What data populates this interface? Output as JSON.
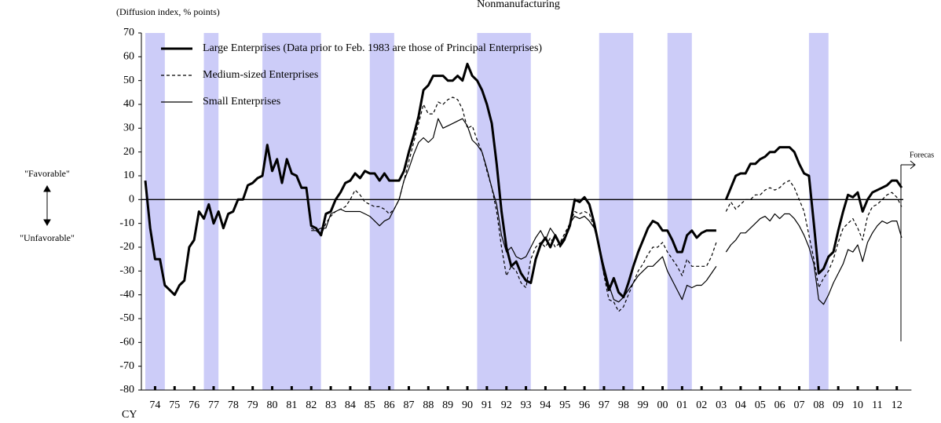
{
  "chart_data": {
    "type": "line",
    "title": "Nonmanufacturing",
    "y_axis_label": "(Diffusion index, % points)",
    "upper_note": "\"Favorable\"",
    "lower_note": "\"Unfavorable\"",
    "forecast_note": "Forecas",
    "x_axis_label": "CY",
    "xlim": [
      1974,
      2013.25
    ],
    "ylim": [
      -80,
      70
    ],
    "yticks": [
      -80,
      -70,
      -60,
      -50,
      -40,
      -30,
      -20,
      -10,
      0,
      10,
      20,
      30,
      40,
      50,
      60,
      70
    ],
    "xticks": [
      {
        "value": 1974.5,
        "label": "74"
      },
      {
        "value": 1975.5,
        "label": "75"
      },
      {
        "value": 1976.5,
        "label": "76"
      },
      {
        "value": 1977.5,
        "label": "77"
      },
      {
        "value": 1978.5,
        "label": "78"
      },
      {
        "value": 1979.5,
        "label": "79"
      },
      {
        "value": 1980.5,
        "label": "80"
      },
      {
        "value": 1981.5,
        "label": "81"
      },
      {
        "value": 1982.5,
        "label": "82"
      },
      {
        "value": 1983.5,
        "label": "83"
      },
      {
        "value": 1984.5,
        "label": "84"
      },
      {
        "value": 1985.5,
        "label": "85"
      },
      {
        "value": 1986.5,
        "label": "86"
      },
      {
        "value": 1987.5,
        "label": "87"
      },
      {
        "value": 1988.5,
        "label": "88"
      },
      {
        "value": 1989.5,
        "label": "89"
      },
      {
        "value": 1990.5,
        "label": "90"
      },
      {
        "value": 1991.5,
        "label": "91"
      },
      {
        "value": 1992.5,
        "label": "92"
      },
      {
        "value": 1993.5,
        "label": "93"
      },
      {
        "value": 1994.5,
        "label": "94"
      },
      {
        "value": 1995.5,
        "label": "95"
      },
      {
        "value": 1996.5,
        "label": "96"
      },
      {
        "value": 1997.5,
        "label": "97"
      },
      {
        "value": 1998.5,
        "label": "98"
      },
      {
        "value": 1999.5,
        "label": "99"
      },
      {
        "value": 2000.5,
        "label": "00"
      },
      {
        "value": 2001.5,
        "label": "01"
      },
      {
        "value": 2002.5,
        "label": "02"
      },
      {
        "value": 2003.5,
        "label": "03"
      },
      {
        "value": 2004.5,
        "label": "04"
      },
      {
        "value": 2005.5,
        "label": "05"
      },
      {
        "value": 2006.5,
        "label": "06"
      },
      {
        "value": 2007.5,
        "label": "07"
      },
      {
        "value": 2008.5,
        "label": "08"
      },
      {
        "value": 2009.5,
        "label": "09"
      },
      {
        "value": 2010.5,
        "label": "10"
      },
      {
        "value": 2011.5,
        "label": "11"
      },
      {
        "value": 2012.5,
        "label": "12"
      }
    ],
    "shaded_periods": [
      [
        1974,
        1975
      ],
      [
        1977,
        1977.75
      ],
      [
        1980,
        1983
      ],
      [
        1985.5,
        1986.75
      ],
      [
        1991,
        1993.75
      ],
      [
        1997.25,
        1999
      ],
      [
        2000.75,
        2002
      ],
      [
        2008,
        2009
      ]
    ],
    "shade_color": "#ccccf8",
    "x": [
      1974,
      1974.25,
      1974.5,
      1974.75,
      1975,
      1975.25,
      1975.5,
      1975.75,
      1976,
      1976.25,
      1976.5,
      1976.75,
      1977,
      1977.25,
      1977.5,
      1977.75,
      1978,
      1978.25,
      1978.5,
      1978.75,
      1979,
      1979.25,
      1979.5,
      1979.75,
      1980,
      1980.25,
      1980.5,
      1980.75,
      1981,
      1981.25,
      1981.5,
      1981.75,
      1982,
      1982.25,
      1982.5,
      1982.75,
      1983,
      1983.25,
      1983.5,
      1983.75,
      1984,
      1984.25,
      1984.5,
      1984.75,
      1985,
      1985.25,
      1985.5,
      1985.75,
      1986,
      1986.25,
      1986.5,
      1986.75,
      1987,
      1987.25,
      1987.5,
      1987.75,
      1988,
      1988.25,
      1988.5,
      1988.75,
      1989,
      1989.25,
      1989.5,
      1989.75,
      1990,
      1990.25,
      1990.5,
      1990.75,
      1991,
      1991.25,
      1991.5,
      1991.75,
      1992,
      1992.25,
      1992.5,
      1992.75,
      1993,
      1993.25,
      1993.5,
      1993.75,
      1994,
      1994.25,
      1994.5,
      1994.75,
      1995,
      1995.25,
      1995.5,
      1995.75,
      1996,
      1996.25,
      1996.5,
      1996.75,
      1997,
      1997.25,
      1997.5,
      1997.75,
      1998,
      1998.25,
      1998.5,
      1998.75,
      1999,
      1999.25,
      1999.5,
      1999.75,
      2000,
      2000.25,
      2000.5,
      2000.75,
      2001,
      2001.25,
      2001.5,
      2001.75,
      2002,
      2002.25,
      2002.5,
      2002.75,
      2003,
      2003.25,
      2003.5,
      2003.75,
      2004,
      2004.25,
      2004.5,
      2004.75,
      2005,
      2005.25,
      2005.5,
      2005.75,
      2006,
      2006.25,
      2006.5,
      2006.75,
      2007,
      2007.25,
      2007.5,
      2007.75,
      2008,
      2008.25,
      2008.5,
      2008.75,
      2009,
      2009.25,
      2009.5,
      2009.75,
      2010,
      2010.25,
      2010.5,
      2010.75,
      2011,
      2011.25,
      2011.5,
      2011.75,
      2012,
      2012.25,
      2012.5,
      2012.75
    ],
    "series": [
      {
        "name": "Large Enterprises (Data prior to Feb. 1983 are those of Principal Enterprises)",
        "color": "#000000",
        "line_width": 3,
        "dash": false,
        "values": [
          8,
          -12,
          -25,
          -25,
          -36,
          -38,
          -40,
          -36,
          -34,
          -20,
          -17,
          -5,
          -8,
          -2,
          -10,
          -5,
          -12,
          -6,
          -5,
          0,
          0,
          6,
          7,
          9,
          10,
          23,
          12,
          17,
          7,
          17,
          11,
          10,
          5,
          5,
          -11,
          -12,
          -15,
          -6,
          -5,
          0,
          3,
          7,
          8,
          11,
          9,
          12,
          11,
          11,
          8,
          11,
          8,
          8,
          8,
          12,
          20,
          27,
          35,
          46,
          48,
          52,
          52,
          52,
          50,
          50,
          52,
          50,
          57,
          52,
          50,
          46,
          40,
          32,
          15,
          -5,
          -20,
          -28,
          -26,
          -31,
          -34,
          -35,
          -25,
          -19,
          -16,
          -20,
          -15,
          -19,
          -16,
          -11,
          0,
          -1,
          1,
          -2,
          -10,
          -20,
          -30,
          -38,
          -33,
          -39,
          -41,
          -35,
          -28,
          -22,
          -17,
          -12,
          -9,
          -10,
          -13,
          -13,
          -17,
          -22,
          -22,
          -15,
          -13,
          -16,
          -14,
          -13,
          -13,
          -13,
          null,
          0,
          5,
          10,
          11,
          11,
          15,
          15,
          17,
          18,
          20,
          20,
          22,
          22,
          22,
          20,
          15,
          11,
          10,
          -10,
          -31,
          -29,
          -24,
          -22,
          -13,
          -5,
          2,
          1,
          3,
          -5,
          0,
          3,
          4,
          5,
          6,
          8,
          8,
          5
        ]
      },
      {
        "name": "Medium-sized Enterprises",
        "color": "#000000",
        "line_width": 1.2,
        "dash": true,
        "values": [
          null,
          null,
          null,
          null,
          null,
          null,
          null,
          null,
          null,
          null,
          null,
          null,
          null,
          null,
          null,
          null,
          null,
          null,
          null,
          null,
          null,
          null,
          null,
          null,
          null,
          null,
          null,
          null,
          null,
          null,
          null,
          null,
          null,
          null,
          -12,
          -13,
          -15,
          -10,
          -7,
          -5,
          -4,
          -3,
          0,
          4,
          2,
          -1,
          -2,
          -3,
          -3,
          -4,
          -6,
          -4,
          0,
          8,
          16,
          24,
          32,
          40,
          36,
          36,
          41,
          40,
          42,
          43,
          42,
          38,
          30,
          31,
          25,
          20,
          12,
          5,
          -5,
          -20,
          -32,
          -28,
          -30,
          -35,
          -37,
          -25,
          -20,
          -18,
          -20,
          -16,
          -20,
          -18,
          -14,
          -10,
          -5,
          -6,
          -5,
          -6,
          -12,
          -20,
          -32,
          -42,
          -43,
          -47,
          -45,
          -40,
          -35,
          -30,
          -27,
          -23,
          -20,
          -20,
          -18,
          -22,
          -25,
          -28,
          -32,
          -25,
          -28,
          -28,
          -28,
          -28,
          -24,
          -18,
          null,
          -5,
          -1,
          -4,
          -2,
          0,
          0,
          2,
          2,
          4,
          5,
          4,
          5,
          7,
          8,
          5,
          0,
          -5,
          -15,
          -25,
          -37,
          -33,
          -30,
          -25,
          -18,
          -12,
          -10,
          -8,
          -12,
          -17,
          -7,
          -3,
          -2,
          0,
          2,
          3,
          1,
          -3
        ]
      },
      {
        "name": "Small Enterprises",
        "color": "#000000",
        "line_width": 1.2,
        "dash": false,
        "values": [
          null,
          null,
          null,
          null,
          null,
          null,
          null,
          null,
          null,
          null,
          null,
          null,
          null,
          null,
          null,
          null,
          null,
          null,
          null,
          null,
          null,
          null,
          null,
          null,
          null,
          null,
          null,
          null,
          null,
          null,
          null,
          null,
          null,
          null,
          -13,
          -13,
          -12,
          -12,
          -6,
          -5,
          -4,
          -5,
          -5,
          -5,
          -5,
          -6,
          -7,
          -9,
          -11,
          -9,
          -8,
          -4,
          0,
          8,
          13,
          19,
          24,
          26,
          24,
          26,
          34,
          30,
          31,
          32,
          33,
          34,
          31,
          25,
          23,
          20,
          13,
          5,
          -2,
          -15,
          -22,
          -20,
          -24,
          -25,
          -24,
          -20,
          -16,
          -13,
          -17,
          -12,
          -15,
          -20,
          -17,
          -10,
          -7,
          -8,
          -7,
          -9,
          -12,
          -20,
          -28,
          -36,
          -42,
          -43,
          -41,
          -38,
          -35,
          -32,
          -30,
          -28,
          -28,
          -26,
          -24,
          -30,
          -34,
          -38,
          -42,
          -36,
          -37,
          -36,
          -36,
          -34,
          -31,
          -28,
          null,
          -22,
          -19,
          -17,
          -14,
          -14,
          -12,
          -10,
          -8,
          -7,
          -9,
          -6,
          -8,
          -6,
          -6,
          -8,
          -11,
          -15,
          -20,
          -27,
          -42,
          -44,
          -40,
          -35,
          -31,
          -27,
          -21,
          -22,
          -19,
          -26,
          -18,
          -14,
          -11,
          -9,
          -10,
          -9,
          -9,
          -16
        ]
      }
    ]
  }
}
